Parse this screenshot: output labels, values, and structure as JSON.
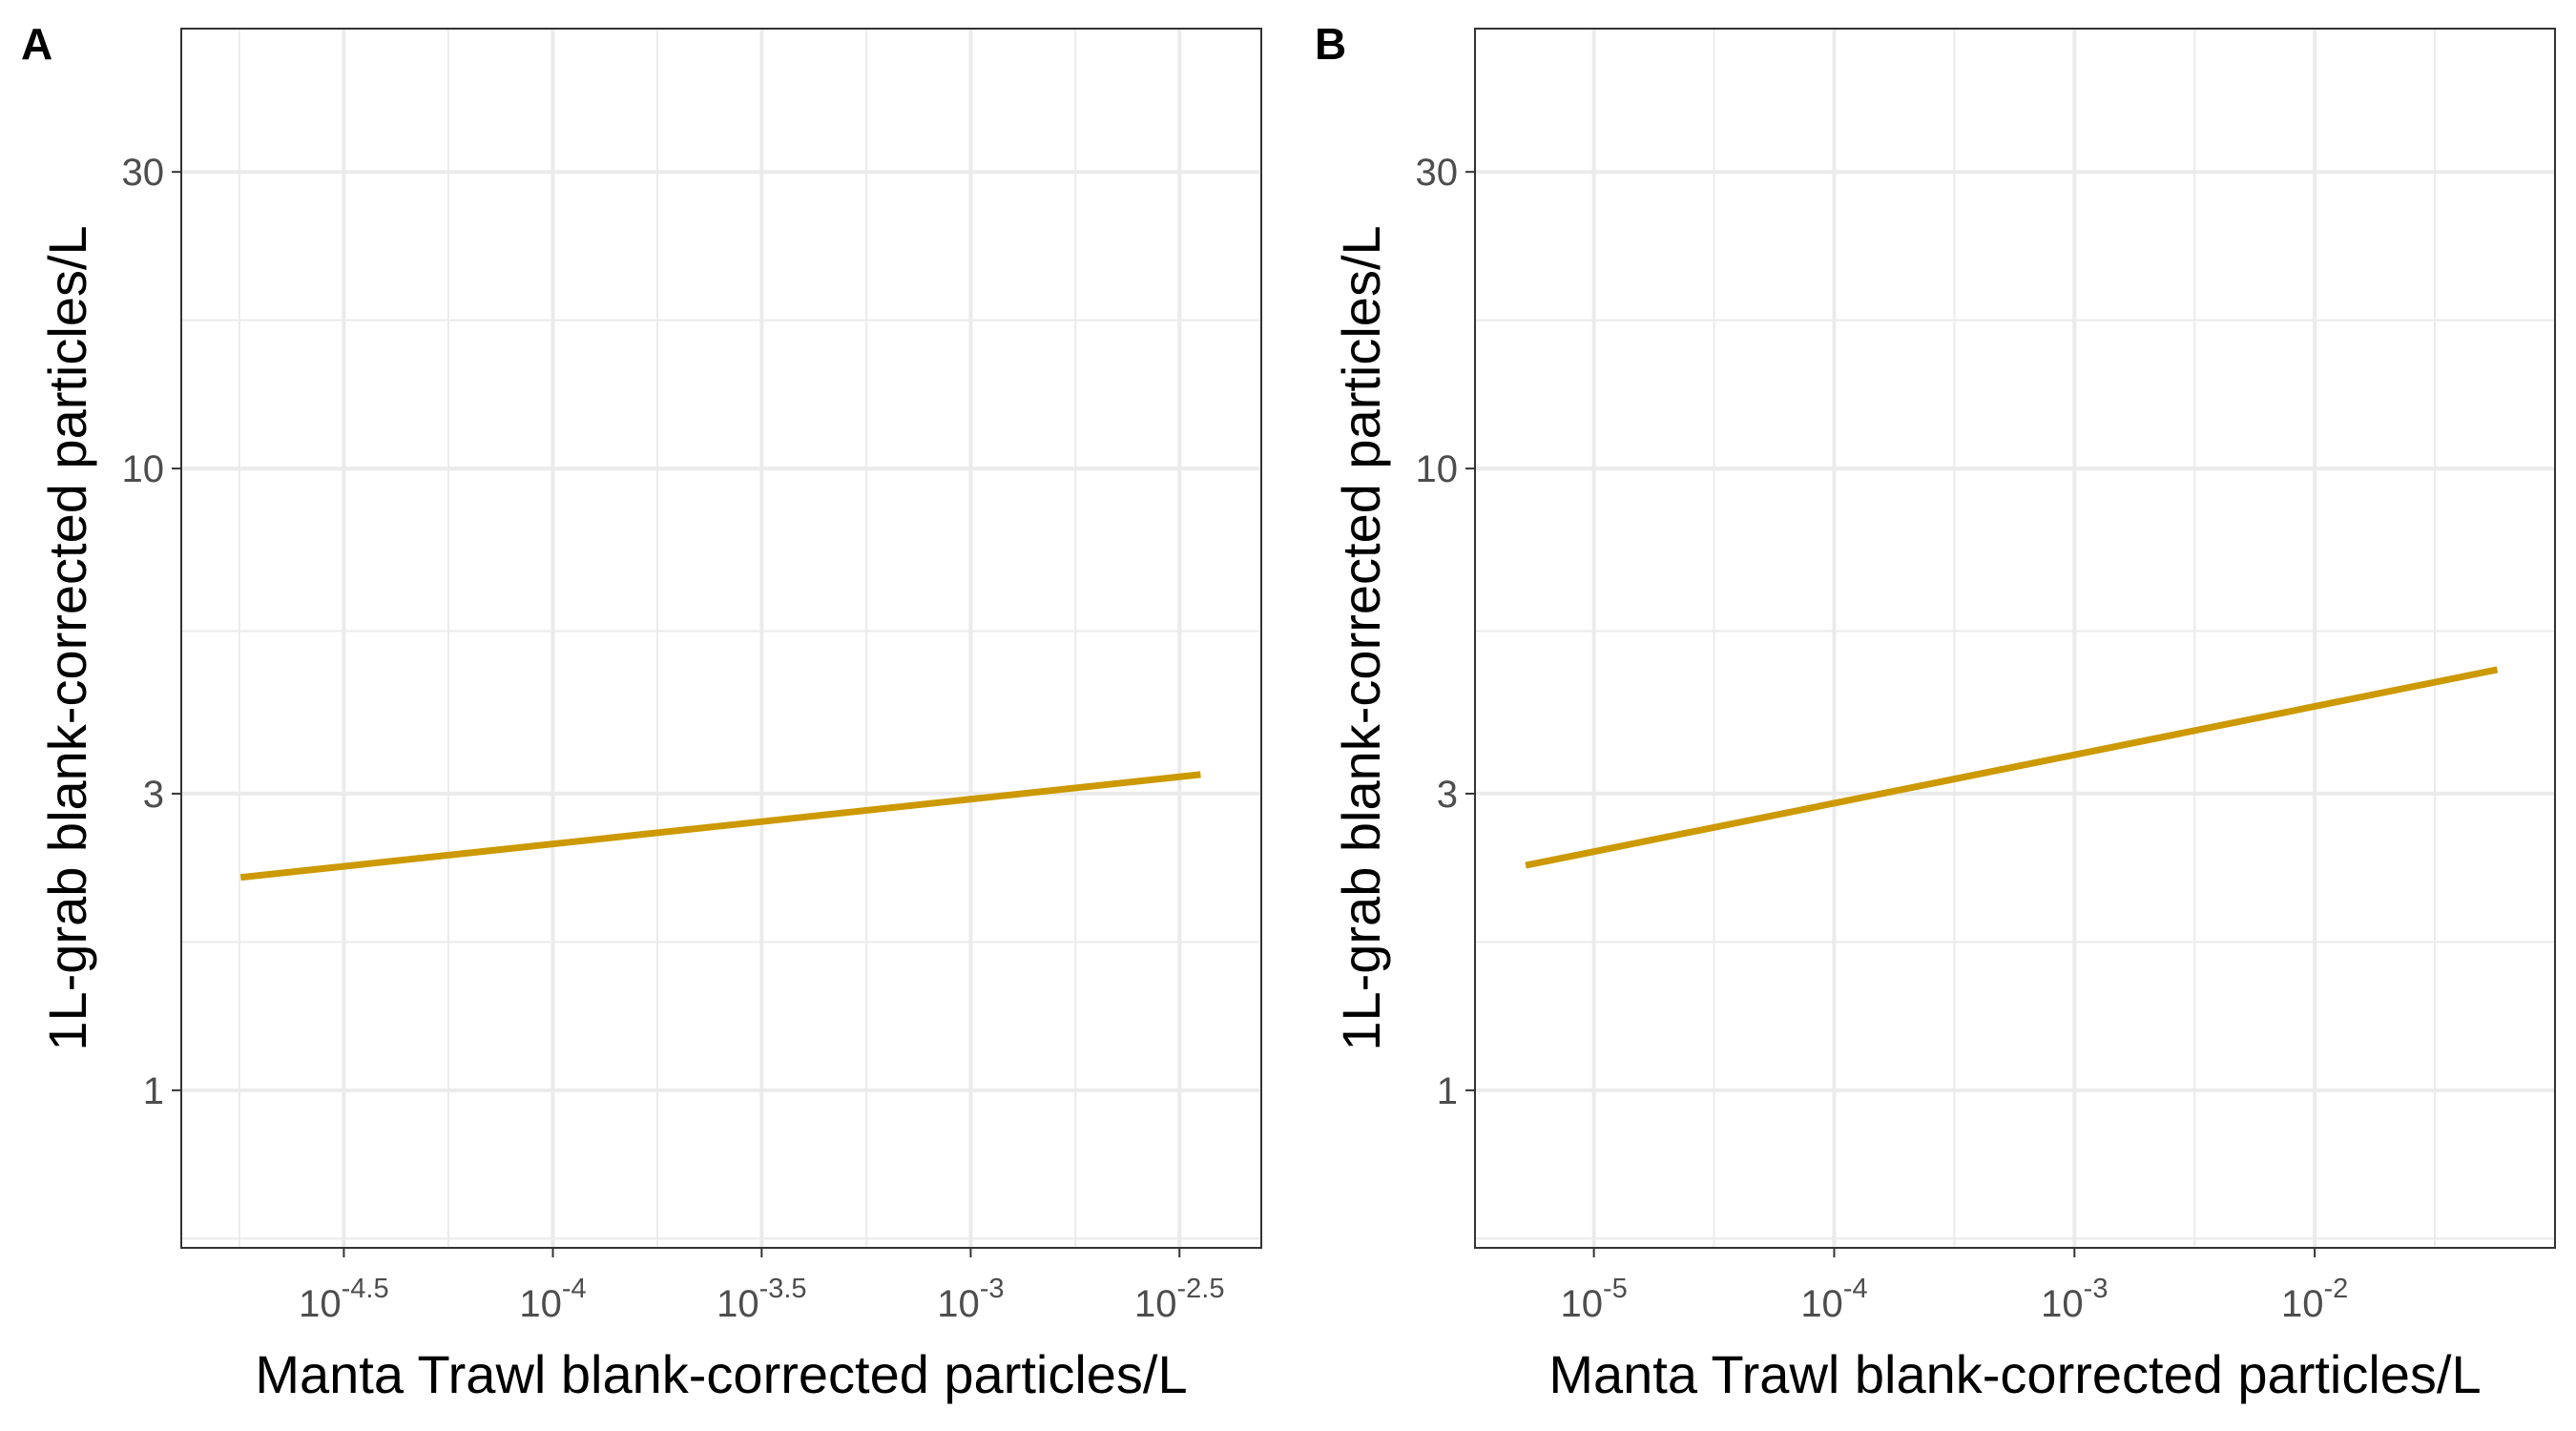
{
  "chart_data": [
    {
      "type": "line",
      "panel_label": "A",
      "xlabel": "Manta Trawl blank-corrected particles/L",
      "ylabel": "1L-grab blank-corrected particles/L",
      "x_scale": "log10",
      "y_scale": "log10",
      "xlim": [
        1.29e-05,
        0.00496
      ],
      "ylim": [
        0.558,
        51
      ],
      "x_ticks": [
        {
          "value": 3.16e-05,
          "base": "10",
          "exp": "-4.5"
        },
        {
          "value": 0.0001,
          "base": "10",
          "exp": "-4"
        },
        {
          "value": 0.000316,
          "base": "10",
          "exp": "-3.5"
        },
        {
          "value": 0.001,
          "base": "10",
          "exp": "-3"
        },
        {
          "value": 0.00316,
          "base": "10",
          "exp": "-2.5"
        }
      ],
      "y_ticks": [
        {
          "value": 1,
          "label": "1"
        },
        {
          "value": 3,
          "label": "3"
        },
        {
          "value": 10,
          "label": "10"
        },
        {
          "value": 30,
          "label": "30"
        }
      ],
      "series": [
        {
          "color": "#cc9900",
          "x": [
            1.79e-05,
            0.00355
          ],
          "y": [
            2.2,
            3.22
          ]
        }
      ],
      "grid": true
    },
    {
      "type": "line",
      "panel_label": "B",
      "xlabel": "Manta Trawl blank-corrected particles/L",
      "ylabel": "1L-grab blank-corrected particles/L",
      "x_scale": "log10",
      "y_scale": "log10",
      "xlim": [
        3.2e-06,
        0.1
      ],
      "ylim": [
        0.558,
        51
      ],
      "x_ticks": [
        {
          "value": 1e-05,
          "base": "10",
          "exp": "-5"
        },
        {
          "value": 0.0001,
          "base": "10",
          "exp": "-4"
        },
        {
          "value": 0.001,
          "base": "10",
          "exp": "-3"
        },
        {
          "value": 0.01,
          "base": "10",
          "exp": "-2"
        }
      ],
      "y_ticks": [
        {
          "value": 1,
          "label": "1"
        },
        {
          "value": 3,
          "label": "3"
        },
        {
          "value": 10,
          "label": "10"
        },
        {
          "value": 30,
          "label": "30"
        }
      ],
      "series": [
        {
          "color": "#cc9900",
          "x": [
            5.2e-06,
            0.0575
          ],
          "y": [
            2.3,
            4.75
          ]
        }
      ],
      "grid": true
    }
  ]
}
